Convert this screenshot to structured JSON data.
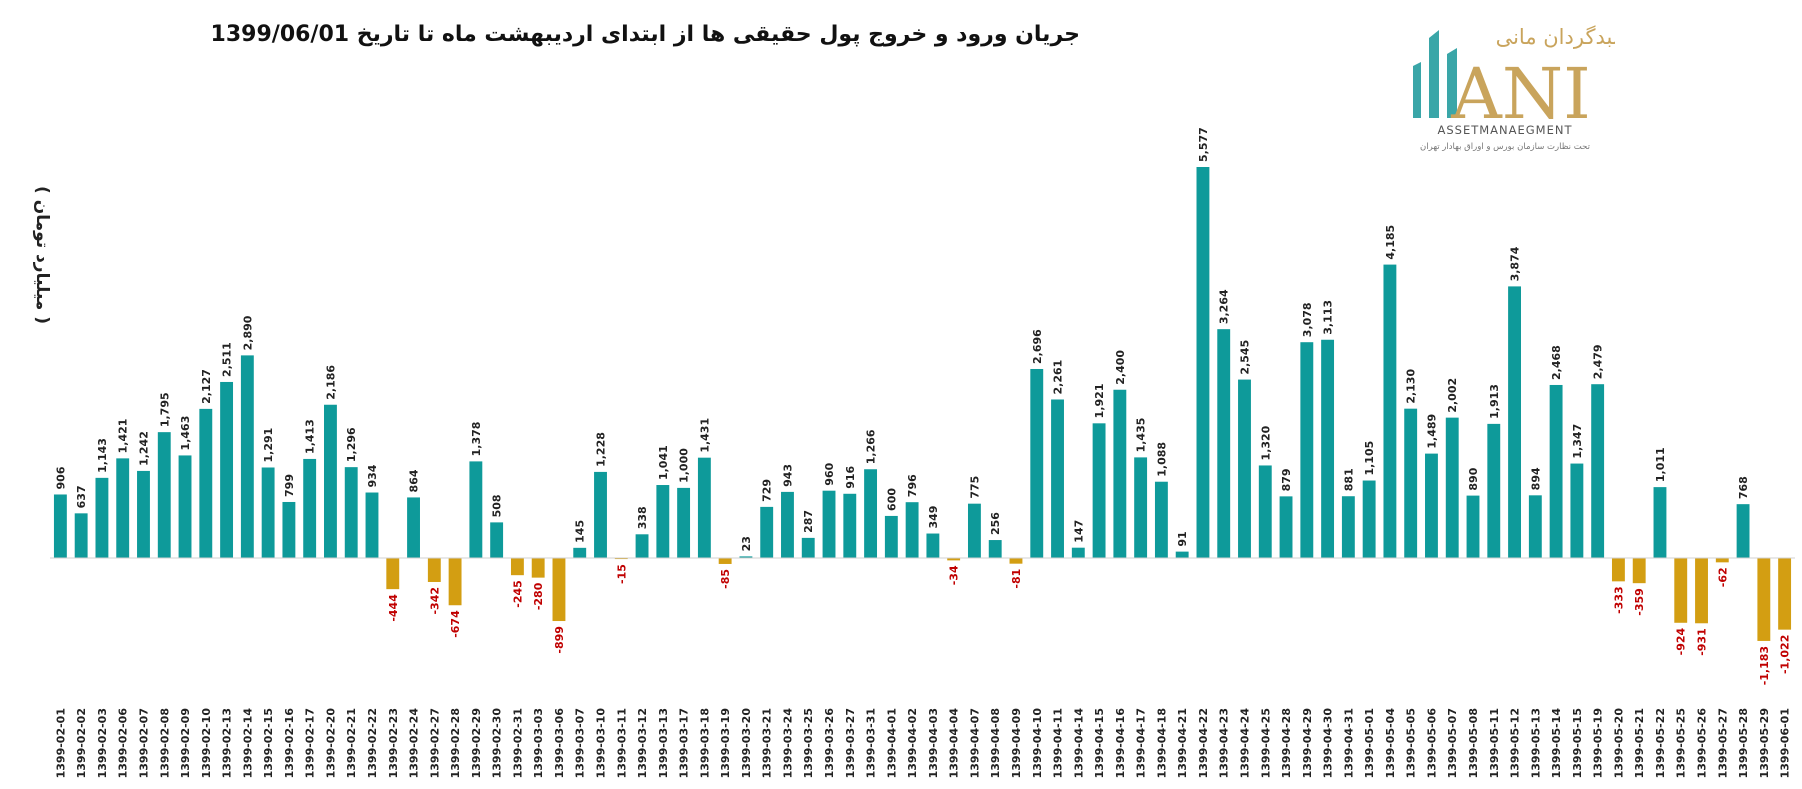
{
  "chart_data": {
    "type": "bar",
    "title": "جریان ورود و خروج پول حقیقی ها از ابتدای اردیبهشت ماه تا تاریخ 1399/06/01",
    "ylabel": "( میلیارد تومان )",
    "xlabel": "",
    "colors": {
      "positive": "#0e9a9a",
      "negative": "#d39e12",
      "negative_label": "#c00000",
      "positive_label": "#222222"
    },
    "ylim": [
      -1250,
      5700
    ],
    "categories": [
      "1399-02-01",
      "1399-02-02",
      "1399-02-03",
      "1399-02-06",
      "1399-02-07",
      "1399-02-08",
      "1399-02-09",
      "1399-02-10",
      "1399-02-13",
      "1399-02-14",
      "1399-02-15",
      "1399-02-16",
      "1399-02-17",
      "1399-02-20",
      "1399-02-21",
      "1399-02-22",
      "1399-02-23",
      "1399-02-24",
      "1399-02-27",
      "1399-02-28",
      "1399-02-29",
      "1399-02-30",
      "1399-02-31",
      "1399-03-03",
      "1399-03-06",
      "1399-03-07",
      "1399-03-10",
      "1399-03-11",
      "1399-03-12",
      "1399-03-13",
      "1399-03-17",
      "1399-03-18",
      "1399-03-19",
      "1399-03-20",
      "1399-03-21",
      "1399-03-24",
      "1399-03-25",
      "1399-03-26",
      "1399-03-27",
      "1399-03-31",
      "1399-04-01",
      "1399-04-02",
      "1399-04-03",
      "1399-04-04",
      "1399-04-07",
      "1399-04-08",
      "1399-04-09",
      "1399-04-10",
      "1399-04-11",
      "1399-04-14",
      "1399-04-15",
      "1399-04-16",
      "1399-04-17",
      "1399-04-18",
      "1399-04-21",
      "1399-04-22",
      "1399-04-23",
      "1399-04-24",
      "1399-04-25",
      "1399-04-28",
      "1399-04-29",
      "1399-04-30",
      "1399-04-31",
      "1399-05-01",
      "1399-05-04",
      "1399-05-05",
      "1399-05-06",
      "1399-05-07",
      "1399-05-08",
      "1399-05-11",
      "1399-05-12",
      "1399-05-13",
      "1399-05-14",
      "1399-05-15",
      "1399-05-19",
      "1399-05-20",
      "1399-05-21",
      "1399-05-22",
      "1399-05-25",
      "1399-05-26",
      "1399-05-27",
      "1399-05-28",
      "1399-05-29",
      "1399-06-01"
    ],
    "values": [
      906,
      637,
      1143,
      1421,
      1242,
      1795,
      1463,
      2127,
      2511,
      2890,
      1291,
      799,
      1413,
      2186,
      1296,
      934,
      -444,
      864,
      -342,
      -674,
      1378,
      508,
      -245,
      -280,
      -899,
      145,
      1228,
      -15,
      338,
      1041,
      1000,
      1431,
      -85,
      23,
      729,
      943,
      287,
      960,
      916,
      1266,
      600,
      796,
      349,
      -34,
      775,
      256,
      -81,
      2696,
      2261,
      147,
      1921,
      2400,
      1435,
      1088,
      91,
      5577,
      3264,
      2545,
      1320,
      879,
      3078,
      3113,
      881,
      1105,
      4185,
      2130,
      1489,
      2002,
      890,
      1913,
      3874,
      894,
      2468,
      1347,
      2479,
      -333,
      -359,
      1011,
      -924,
      -931,
      -62,
      768,
      -1183,
      -1022
    ],
    "value_labels": [
      "906",
      "637",
      "1,143",
      "1,421",
      "1,242",
      "1,795",
      "1,463",
      "2,127",
      "2,511",
      "2,890",
      "1,291",
      "799",
      "1,413",
      "2,186",
      "1,296",
      "934",
      "-444",
      "864",
      "-342",
      "-674",
      "1,378",
      "508",
      "-245",
      "-280",
      "-899",
      "145",
      "1,228",
      "-15",
      "338",
      "1,041",
      "1,000",
      "1,431",
      "-85",
      "23",
      "729",
      "943",
      "287",
      "960",
      "916",
      "1,266",
      "600",
      "796",
      "349",
      "-34",
      "775",
      "256",
      "-81",
      "2,696",
      "2,261",
      "147",
      "1,921",
      "2,400",
      "1,435",
      "1,088",
      "91",
      "5,577",
      "3,264",
      "2,545",
      "1,320",
      "879",
      "3,078",
      "3,113",
      "881",
      "1,105",
      "4,185",
      "2,130",
      "1,489",
      "2,002",
      "890",
      "1,913",
      "3,874",
      "894",
      "2,468",
      "1,347",
      "2,479",
      "-333",
      "-359",
      "1,011",
      "-924",
      "-931",
      "-62",
      "768",
      "-1,183",
      "-1,022"
    ]
  },
  "logo": {
    "persian_name": "سبدگردان مانی",
    "latin_name": "ANI",
    "tagline": "ASSETMANAEGMENT",
    "subtitle": "تحت نظارت سازمان بورس و اوراق بهادار تهران",
    "colors": {
      "teal": "#3aa6a8",
      "gold": "#c9a45c",
      "grey": "#666666"
    }
  }
}
